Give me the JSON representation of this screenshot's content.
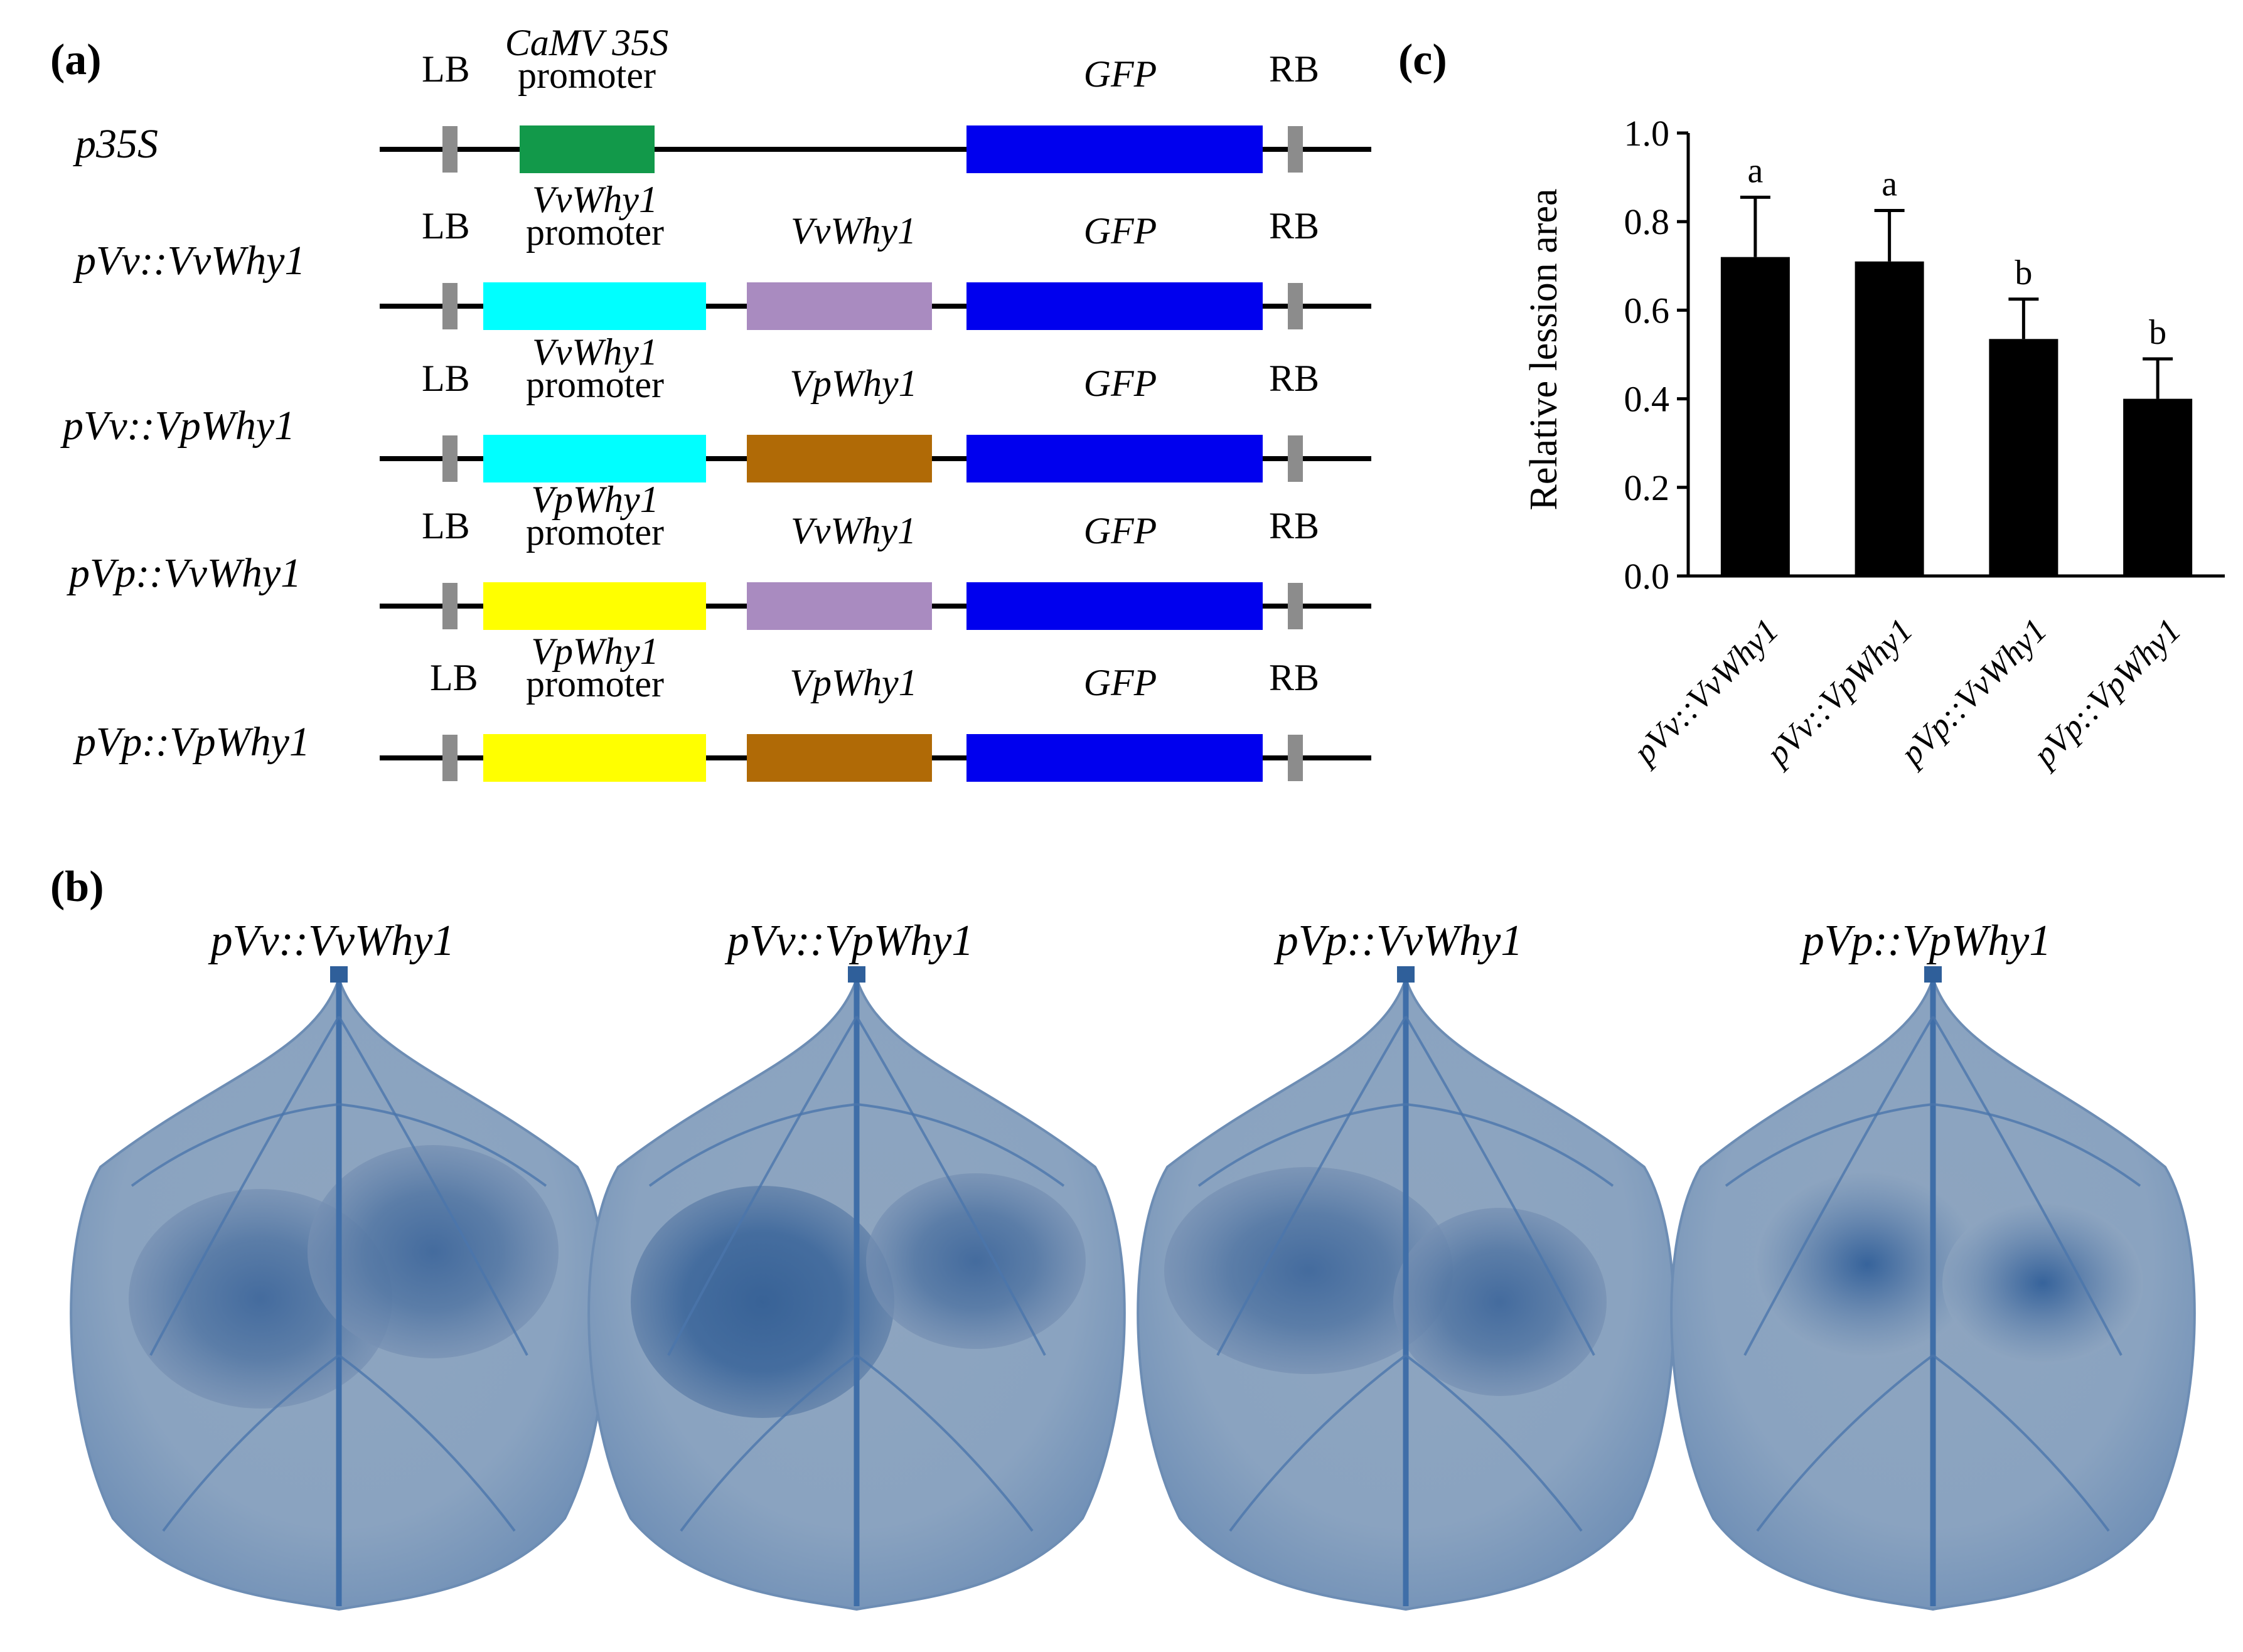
{
  "panels": {
    "a": "(a)",
    "b": "(b)",
    "c": "(c)"
  },
  "constructs": [
    {
      "name": "p35S",
      "lb": "LB",
      "rb": "RB",
      "promoter_top": "CaMV 35S",
      "promoter_bottom": "promoter",
      "promoter_color": "#12994a",
      "gene": "",
      "gene_color": "",
      "reporter": "GFP",
      "reporter_color": "#0000ee"
    },
    {
      "name": "pVv::VvWhy1",
      "lb": "LB",
      "rb": "RB",
      "promoter_top": "VvWhy1",
      "promoter_bottom": "promoter",
      "promoter_color": "#00ffff",
      "gene": "VvWhy1",
      "gene_color": "#a98bc0",
      "reporter": "GFP",
      "reporter_color": "#0000ee"
    },
    {
      "name": "pVv::VpWhy1",
      "lb": "LB",
      "rb": "RB",
      "promoter_top": "VvWhy1",
      "promoter_bottom": "promoter",
      "promoter_color": "#00ffff",
      "gene": "VpWhy1",
      "gene_color": "#b06a06",
      "reporter": "GFP",
      "reporter_color": "#0000ee"
    },
    {
      "name": "pVp::VvWhy1",
      "lb": "LB",
      "rb": "RB",
      "promoter_top": "VpWhy1",
      "promoter_bottom": "promoter",
      "promoter_color": "#ffff00",
      "gene": "VvWhy1",
      "gene_color": "#a98bc0",
      "reporter": "GFP",
      "reporter_color": "#0000ee"
    },
    {
      "name": "pVp::VpWhy1",
      "lb": "LB",
      "rb": "RB",
      "promoter_top": "VpWhy1",
      "promoter_bottom": "promoter",
      "promoter_color": "#ffff00",
      "gene": "VpWhy1",
      "gene_color": "#b06a06",
      "reporter": "GFP",
      "reporter_color": "#0000ee"
    }
  ],
  "chart_data": {
    "type": "bar",
    "categories": [
      "pVv::VvWhy1",
      "pVv::VpWhy1",
      "pVp::VvWhy1",
      "pVp::VpWhy1"
    ],
    "values": [
      0.72,
      0.71,
      0.535,
      0.4
    ],
    "errors": [
      0.135,
      0.115,
      0.09,
      0.09
    ],
    "significance": [
      "a",
      "a",
      "b",
      "b"
    ],
    "ylabel": "Relative lession area",
    "xlabel": "",
    "ylim": [
      0,
      1.0
    ],
    "yticks": [
      "0.0",
      "0.2",
      "0.4",
      "0.6",
      "0.8",
      "1.0"
    ],
    "bar_color": "#000000"
  },
  "leaves": [
    {
      "title": "pVv::VvWhy1"
    },
    {
      "title": "pVv::VpWhy1"
    },
    {
      "title": "pVp::VvWhy1"
    },
    {
      "title": "pVp::VpWhy1"
    }
  ]
}
